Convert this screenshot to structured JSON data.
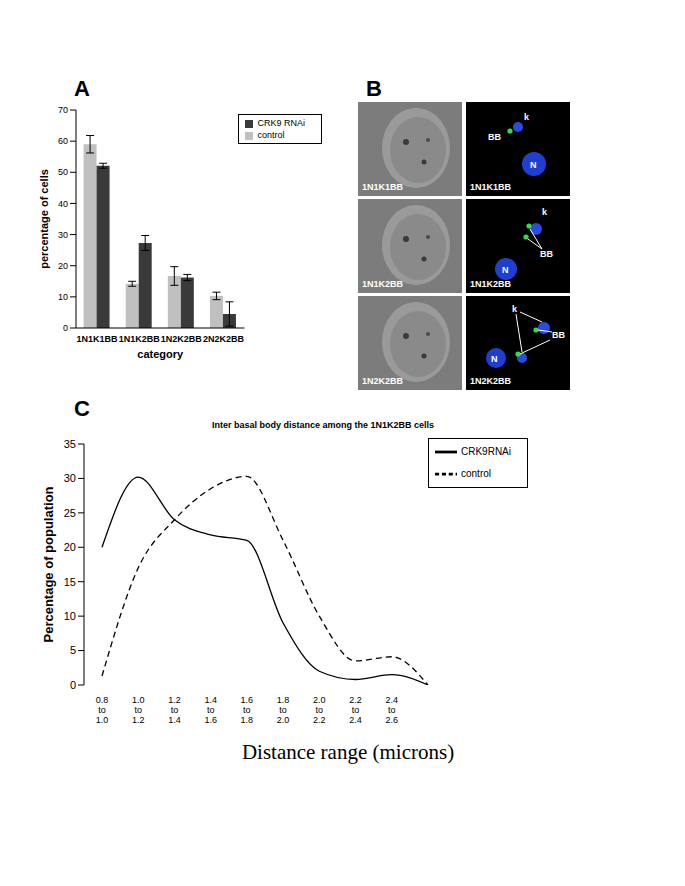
{
  "chart_data": [
    {
      "label": "A",
      "type": "bar",
      "categories": [
        "1N1K1BB",
        "1N1K2BB",
        "1N2K2BB",
        "2N2K2BB"
      ],
      "x_label": "category",
      "y_label": "percentage of cells",
      "ylim": [
        0,
        70
      ],
      "yticks": [
        0,
        10,
        20,
        30,
        40,
        50,
        60,
        70
      ],
      "legend": "upper right",
      "series": [
        {
          "name": "control",
          "color": "#c0c0c0",
          "values": [
            59,
            14.2,
            16.7,
            10.3
          ],
          "errors": [
            2.8,
            0.8,
            3.0,
            1.2
          ]
        },
        {
          "name": "CRK9 RNAi",
          "color": "#3a3a3a",
          "values": [
            52.1,
            27.3,
            16.2,
            4.5
          ],
          "errors": [
            0.8,
            2.4,
            1.0,
            3.9
          ]
        }
      ]
    },
    {
      "label": "C",
      "type": "line",
      "title": "Inter basal body distance among the 1N1K2BB cells",
      "categories": [
        "0.8 to 1.0",
        "1.0 to 1.2",
        "1.2 to 1.4",
        "1.4 to 1.6",
        "1.6 to 1.8",
        "1.8 to 2.0",
        "2.0 to 2.2",
        "2.2 to 2.4",
        "2.4 to 2.6",
        null
      ],
      "x_label": "Distance range (microns)",
      "y_label": "Percentage of population",
      "ylim": [
        0,
        35
      ],
      "yticks": [
        0,
        5,
        10,
        15,
        20,
        25,
        30,
        35
      ],
      "legend": "upper right",
      "series": [
        {
          "name": "control",
          "color": "#000000",
          "line_style": "dashed",
          "values": [
            1.3,
            17,
            24,
            28.5,
            30.3,
            21,
            10,
            3.5,
            4.1,
            0
          ]
        },
        {
          "name": "CRK9RNAi",
          "color": "#000000",
          "line_style": "solid",
          "values": [
            20,
            30.2,
            24,
            21.8,
            21,
            9,
            2,
            0.8,
            1.5,
            0
          ]
        }
      ]
    }
  ],
  "panel_b": {
    "label": "B",
    "rows": [
      {
        "phase_label": "1N1K1BB",
        "fluor_label": "1N1K1BB",
        "annotations": [
          "k",
          "BB",
          "N"
        ]
      },
      {
        "phase_label": "1N1K2BB",
        "fluor_label": "1N1K2BB",
        "annotations": [
          "k",
          "BB",
          "N"
        ]
      },
      {
        "phase_label": "1N2K2BB",
        "fluor_label": "1N2K2BB",
        "annotations": [
          "k",
          "BB",
          "N"
        ]
      }
    ]
  }
}
